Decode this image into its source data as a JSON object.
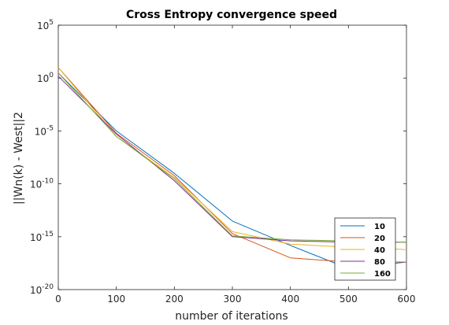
{
  "chart_data": {
    "type": "line",
    "title": "Cross Entropy convergence speed",
    "xlabel": "number of iterations",
    "ylabel": "||Wn(k) - West||2",
    "xlim": [
      0,
      600
    ],
    "ylim": [
      1e-20,
      100000.0
    ],
    "yscale": "log",
    "x_ticks": [
      "0",
      "100",
      "200",
      "300",
      "400",
      "500",
      "600"
    ],
    "y_ticks": [
      {
        "base": "10",
        "exp": "-20",
        "value": 1e-20
      },
      {
        "base": "10",
        "exp": "-15",
        "value": 1e-15
      },
      {
        "base": "10",
        "exp": "-10",
        "value": 1e-10
      },
      {
        "base": "10",
        "exp": "-5",
        "value": 1e-05
      },
      {
        "base": "10",
        "exp": "0",
        "value": 1
      },
      {
        "base": "10",
        "exp": "5",
        "value": 100000.0
      }
    ],
    "legend_position": "bottom-right",
    "grid": false,
    "x": [
      0,
      100,
      200,
      300,
      400,
      500,
      600
    ],
    "series": [
      {
        "name": "10",
        "color": "#0072BD",
        "values": [
          3.0,
          1e-05,
          1e-09,
          3e-14,
          1.5e-16,
          1e-18,
          4e-18
        ]
      },
      {
        "name": "20",
        "color": "#D95319",
        "values": [
          10,
          6e-06,
          6e-10,
          2e-15,
          1e-17,
          4e-18,
          4e-18
        ]
      },
      {
        "name": "40",
        "color": "#EDB120",
        "values": [
          10,
          3e-06,
          4e-10,
          3e-15,
          2e-16,
          1e-16,
          6e-17
        ]
      },
      {
        "name": "80",
        "color": "#7E2F8E",
        "values": [
          1.5,
          5e-06,
          2e-10,
          1e-15,
          4e-16,
          3e-16,
          3e-16
        ]
      },
      {
        "name": "160",
        "color": "#77AC30",
        "values": [
          3.0,
          3e-06,
          3e-10,
          1.2e-15,
          5e-16,
          4e-16,
          3e-16
        ]
      }
    ]
  }
}
